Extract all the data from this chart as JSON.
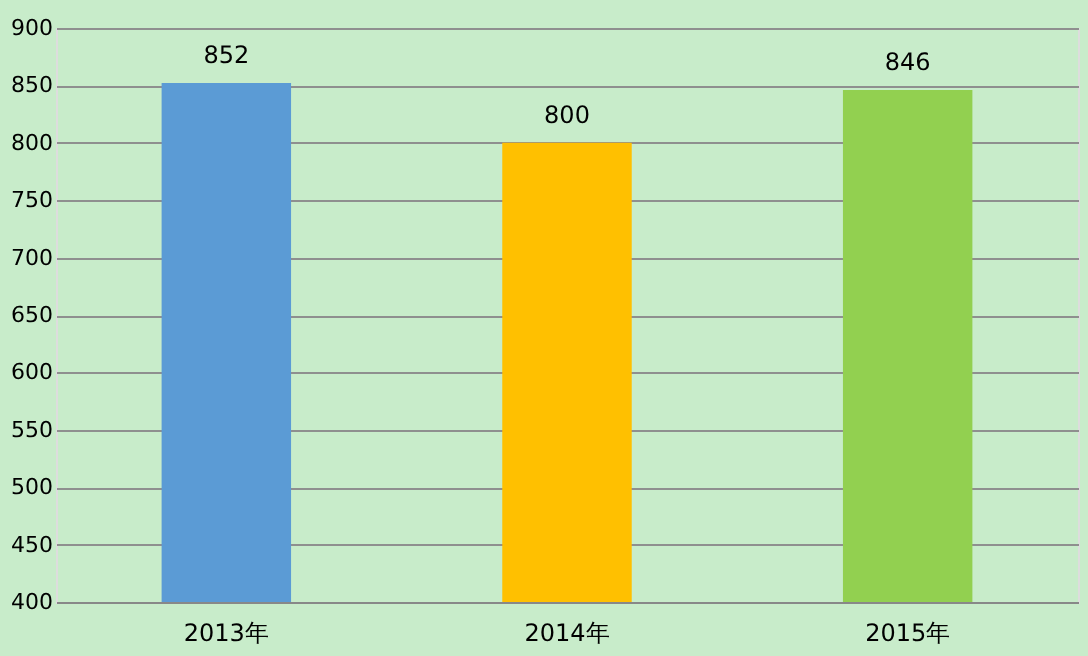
{
  "chart_data": {
    "type": "bar",
    "categories": [
      "2013年",
      "2014年",
      "2015年"
    ],
    "values": [
      852,
      800,
      846
    ],
    "colors": [
      "#5b9bd5",
      "#ffc000",
      "#92d050"
    ],
    "ylim": [
      400,
      900
    ],
    "yticks": [
      400,
      450,
      500,
      550,
      600,
      650,
      700,
      750,
      800,
      850,
      900
    ],
    "grid": "y",
    "data_labels": true
  }
}
